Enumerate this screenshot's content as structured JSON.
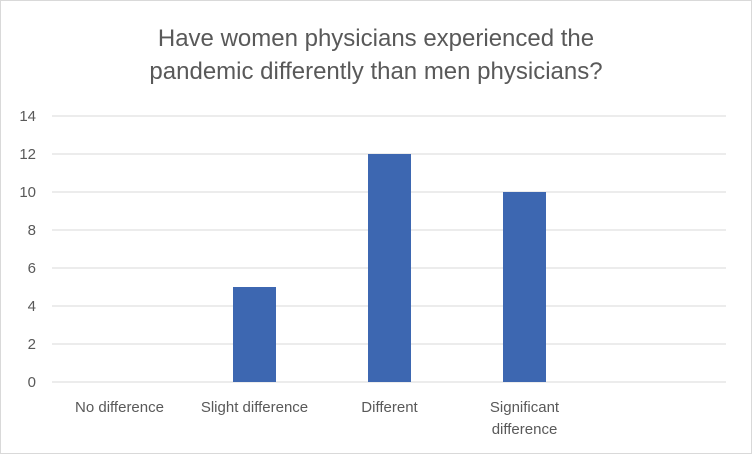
{
  "chart_data": {
    "type": "bar",
    "title_lines": [
      "Have women physicians experienced the",
      "pandemic differently than men physicians?"
    ],
    "categories": [
      [
        "No difference"
      ],
      [
        "Slight difference"
      ],
      [
        "Different"
      ],
      [
        "Significant",
        "difference"
      ]
    ],
    "values": [
      0,
      5,
      12,
      10
    ],
    "ylim": [
      0,
      14
    ],
    "yticks": [
      0,
      2,
      4,
      6,
      8,
      10,
      12,
      14
    ],
    "grid": true,
    "bar_color": "#3d67b1",
    "grid_color": "#d9d9d9",
    "xlabel": "",
    "ylabel": ""
  }
}
